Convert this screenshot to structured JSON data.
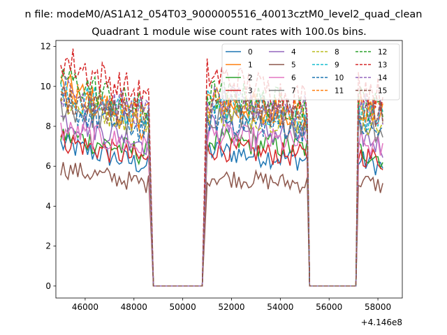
{
  "suptitle": "n file: modeM0/AS1A12_054T03_9000005516_40013cztM0_level2_quad_clean",
  "chart_data": {
    "type": "line",
    "title": "Quadrant 1 module wise count rates with 100.0s bins.",
    "xlabel": "",
    "ylabel": "",
    "x_offset_label": "+4.146e8",
    "xlim": [
      44800,
      59000
    ],
    "ylim": [
      -0.6,
      12.3
    ],
    "xticks": [
      46000,
      48000,
      50000,
      52000,
      54000,
      56000,
      58000
    ],
    "yticks": [
      0,
      2,
      4,
      6,
      8,
      10,
      12
    ],
    "legend": {
      "placement": "top-right",
      "columns": 4
    },
    "segments": [
      {
        "x_start": 45000,
        "x_end": 48600,
        "active": true
      },
      {
        "x_start": 48800,
        "x_end": 50800,
        "active": false
      },
      {
        "x_start": 51000,
        "x_end": 55100,
        "active": true
      },
      {
        "x_start": 55200,
        "x_end": 57100,
        "active": false
      },
      {
        "x_start": 57200,
        "x_end": 58200,
        "active": true
      }
    ],
    "series": [
      {
        "name": "0",
        "color": "#1f77b4",
        "dash": false,
        "seg1": [
          7.1,
          6.0
        ],
        "seg2": [
          6.8,
          6.3
        ],
        "seg3": [
          6.3,
          6.0
        ]
      },
      {
        "name": "1",
        "color": "#ff7f0e",
        "dash": false,
        "seg1": [
          10.0,
          8.0
        ],
        "seg2": [
          9.3,
          8.6
        ],
        "seg3": [
          9.0,
          8.4
        ]
      },
      {
        "name": "2",
        "color": "#2ca02c",
        "dash": false,
        "seg1": [
          7.6,
          6.6
        ],
        "seg2": [
          7.3,
          6.9
        ],
        "seg3": [
          6.8,
          6.4
        ]
      },
      {
        "name": "3",
        "color": "#d62728",
        "dash": false,
        "seg1": [
          7.3,
          6.3
        ],
        "seg2": [
          6.9,
          6.5
        ],
        "seg3": [
          6.6,
          6.3
        ]
      },
      {
        "name": "4",
        "color": "#9467bd",
        "dash": false,
        "seg1": [
          8.4,
          7.2
        ],
        "seg2": [
          8.0,
          7.5
        ],
        "seg3": [
          7.6,
          7.0
        ]
      },
      {
        "name": "5",
        "color": "#8c564b",
        "dash": false,
        "seg1": [
          5.9,
          5.1
        ],
        "seg2": [
          5.5,
          5.1
        ],
        "seg3": [
          5.3,
          5.0
        ]
      },
      {
        "name": "6",
        "color": "#e377c2",
        "dash": false,
        "seg1": [
          7.8,
          6.9
        ],
        "seg2": [
          7.6,
          7.1
        ],
        "seg3": [
          7.2,
          6.8
        ]
      },
      {
        "name": "7",
        "color": "#7f7f7f",
        "dash": false,
        "seg1": [
          9.0,
          7.9
        ],
        "seg2": [
          8.6,
          8.0
        ],
        "seg3": [
          8.2,
          7.8
        ]
      },
      {
        "name": "8",
        "color": "#bcbd22",
        "dash": true,
        "seg1": [
          9.2,
          8.3
        ],
        "seg2": [
          8.8,
          8.3
        ],
        "seg3": [
          8.5,
          8.0
        ]
      },
      {
        "name": "9",
        "color": "#17becf",
        "dash": true,
        "seg1": [
          9.6,
          8.6
        ],
        "seg2": [
          9.1,
          8.6
        ],
        "seg3": [
          8.7,
          8.3
        ]
      },
      {
        "name": "10",
        "color": "#1f77b4",
        "dash": true,
        "seg1": [
          8.9,
          7.8
        ],
        "seg2": [
          8.4,
          7.9
        ],
        "seg3": [
          8.1,
          7.6
        ]
      },
      {
        "name": "11",
        "color": "#ff7f0e",
        "dash": true,
        "seg1": [
          9.6,
          8.5
        ],
        "seg2": [
          9.2,
          8.7
        ],
        "seg3": [
          8.8,
          8.4
        ]
      },
      {
        "name": "12",
        "color": "#2ca02c",
        "dash": true,
        "seg1": [
          10.5,
          8.7
        ],
        "seg2": [
          9.6,
          9.0
        ],
        "seg3": [
          9.3,
          8.8
        ]
      },
      {
        "name": "13",
        "color": "#d62728",
        "dash": true,
        "seg1": [
          11.4,
          9.3
        ],
        "seg2": [
          10.6,
          9.3
        ],
        "seg3": [
          10.2,
          9.5
        ]
      },
      {
        "name": "14",
        "color": "#9467bd",
        "dash": true,
        "seg1": [
          9.8,
          8.6
        ],
        "seg2": [
          9.3,
          8.8
        ],
        "seg3": [
          9.0,
          8.6
        ]
      },
      {
        "name": "15",
        "color": "#8c564b",
        "dash": true,
        "seg1": [
          9.4,
          8.5
        ],
        "seg2": [
          9.0,
          8.6
        ],
        "seg3": [
          8.8,
          8.5
        ]
      }
    ]
  }
}
